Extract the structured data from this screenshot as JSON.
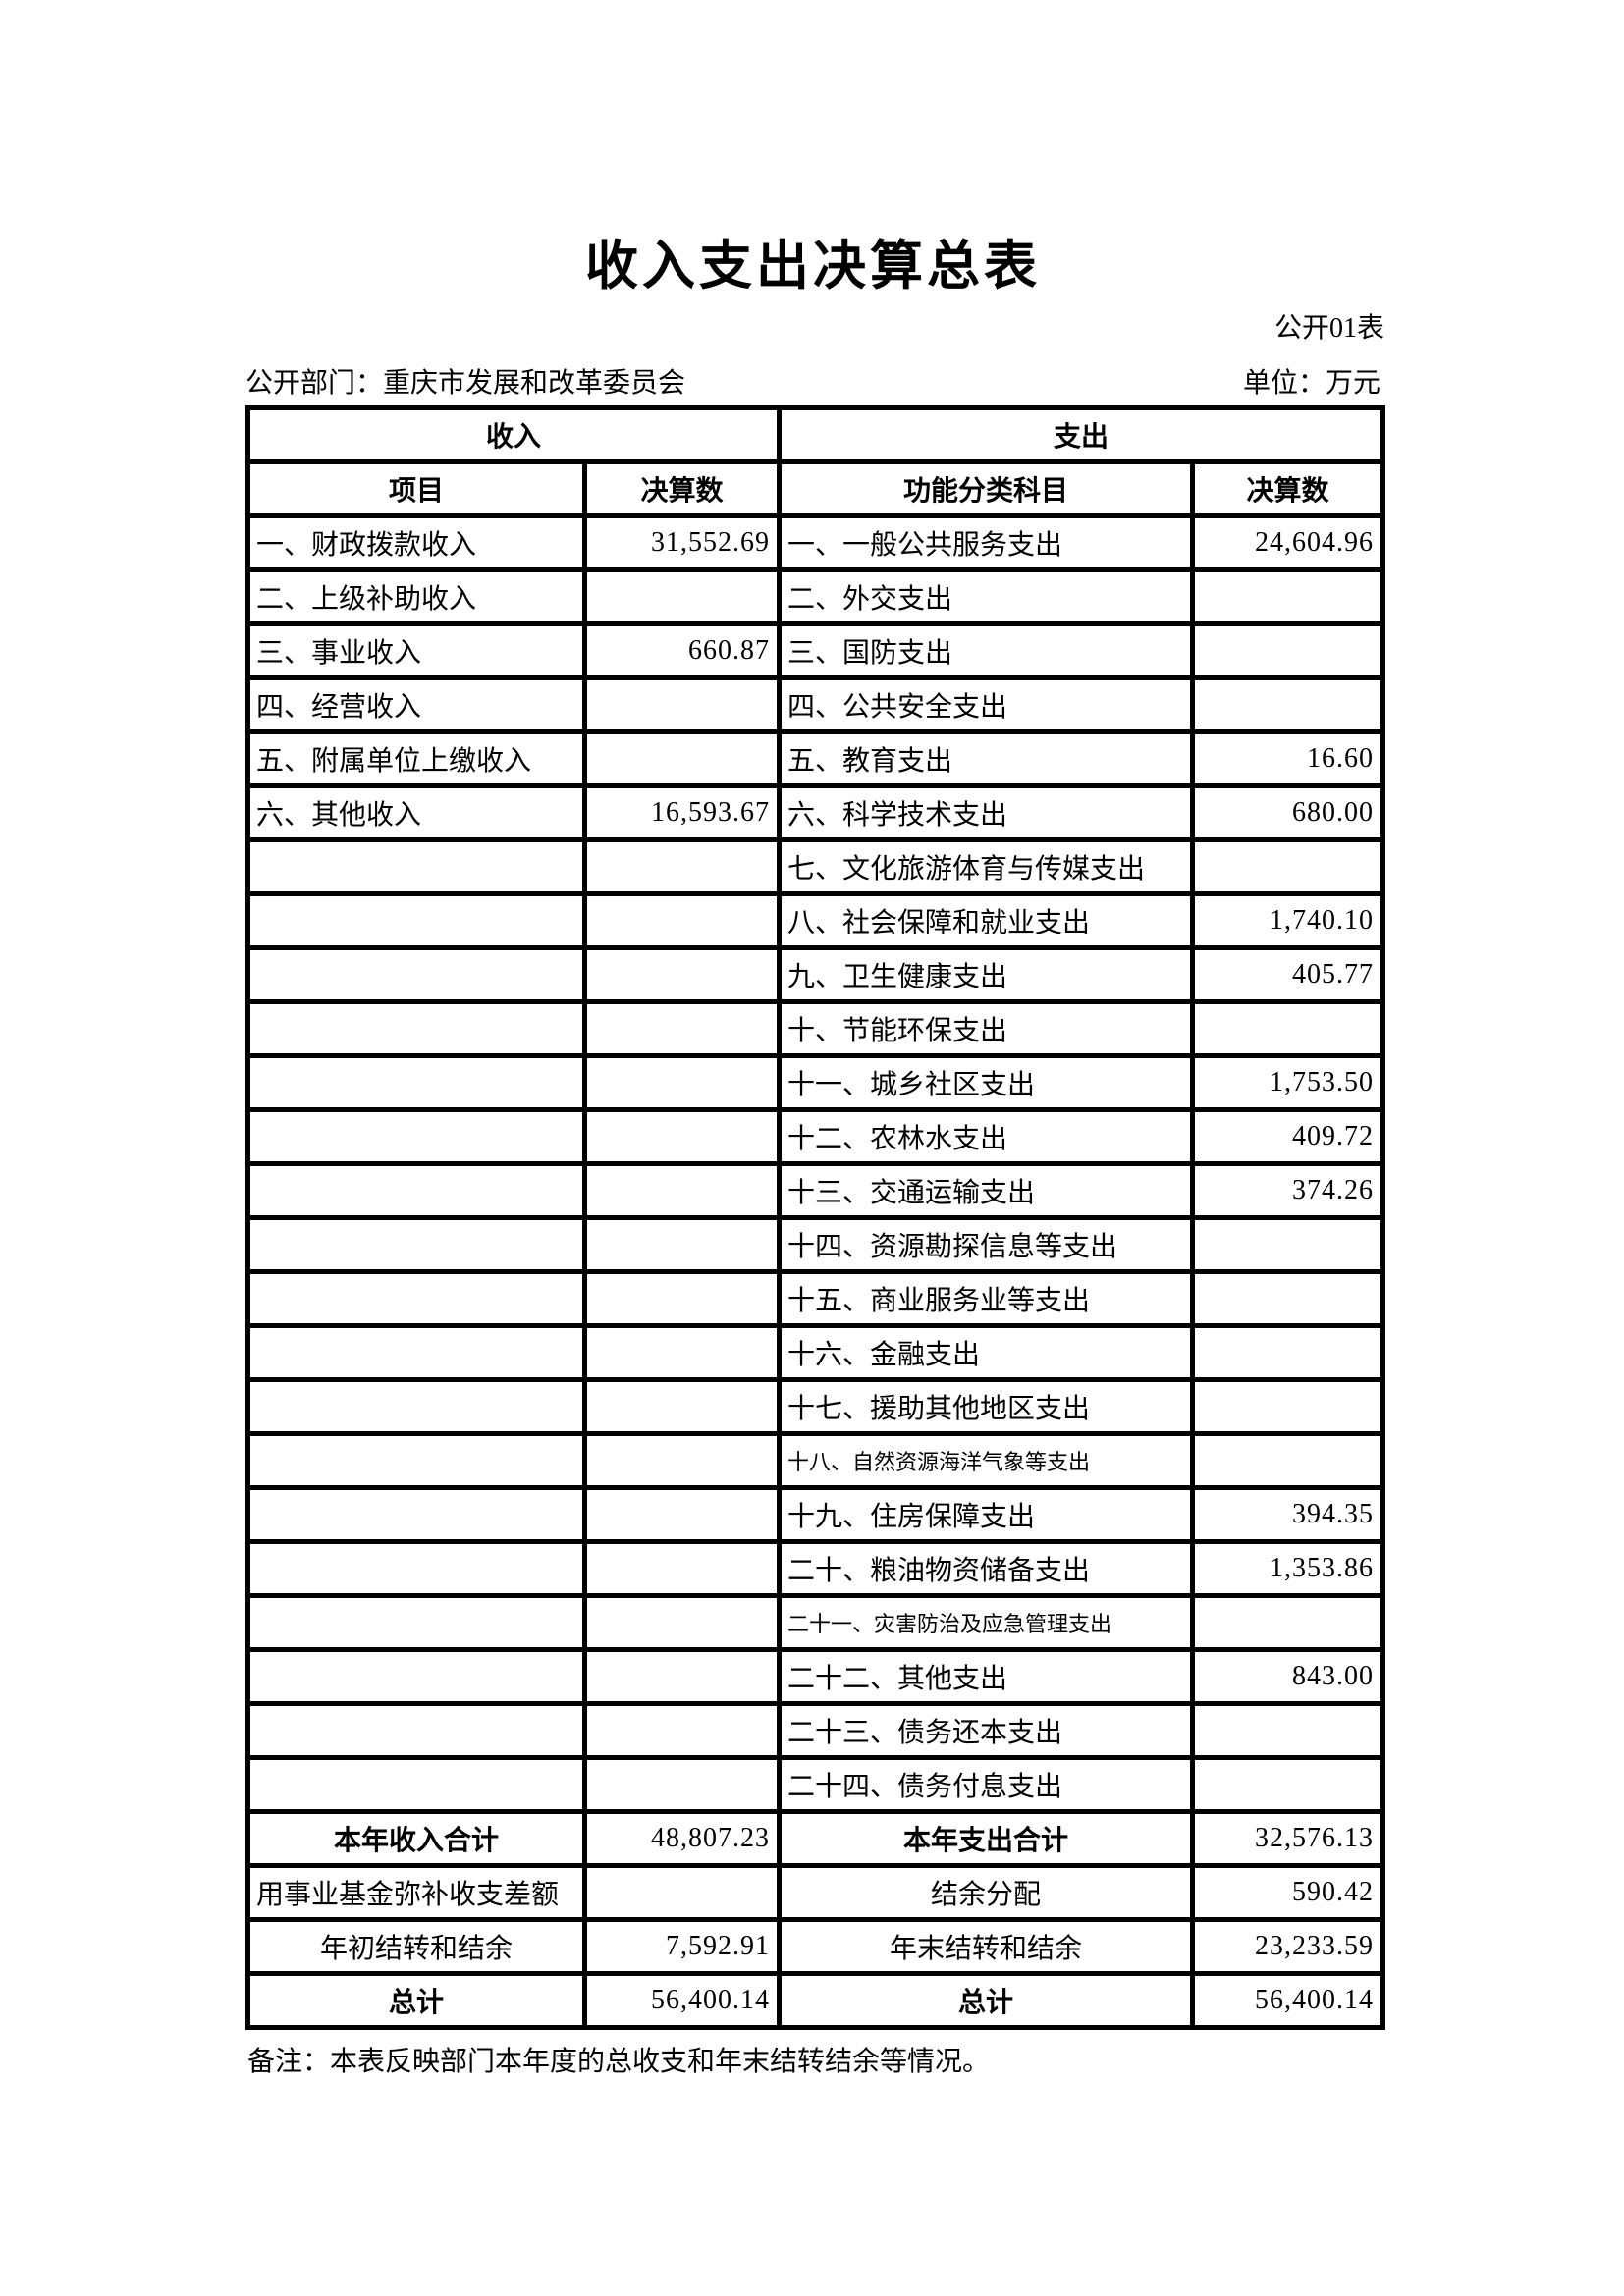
{
  "page": {
    "title": "收入支出决算总表",
    "form_code": "公开01表",
    "department_label": "公开部门：重庆市发展和改革委员会",
    "unit_label": "单位：万元",
    "note": "备注：本表反映部门本年度的总收支和年末结转结余等情况。"
  },
  "colors": {
    "text": "#000000",
    "background": "#ffffff",
    "border": "#000000"
  },
  "table": {
    "group_headers": {
      "income": "收入",
      "expenditure": "支出"
    },
    "column_headers": {
      "income_item": "项目",
      "income_amount": "决算数",
      "expenditure_item": "功能分类科目",
      "expenditure_amount": "决算数"
    },
    "rows": [
      {
        "income_item": "一、财政拨款收入",
        "income_amount": "31,552.69",
        "exp_item": "一、一般公共服务支出",
        "exp_amount": "24,604.96"
      },
      {
        "income_item": "二、上级补助收入",
        "income_amount": "",
        "exp_item": "二、外交支出",
        "exp_amount": ""
      },
      {
        "income_item": "三、事业收入",
        "income_amount": "660.87",
        "exp_item": "三、国防支出",
        "exp_amount": ""
      },
      {
        "income_item": "四、经营收入",
        "income_amount": "",
        "exp_item": "四、公共安全支出",
        "exp_amount": ""
      },
      {
        "income_item": "五、附属单位上缴收入",
        "income_amount": "",
        "exp_item": "五、教育支出",
        "exp_amount": "16.60"
      },
      {
        "income_item": "六、其他收入",
        "income_amount": "16,593.67",
        "exp_item": "六、科学技术支出",
        "exp_amount": "680.00"
      },
      {
        "income_item": "",
        "income_amount": "",
        "exp_item": "七、文化旅游体育与传媒支出",
        "exp_amount": ""
      },
      {
        "income_item": "",
        "income_amount": "",
        "exp_item": "八、社会保障和就业支出",
        "exp_amount": "1,740.10"
      },
      {
        "income_item": "",
        "income_amount": "",
        "exp_item": "九、卫生健康支出",
        "exp_amount": "405.77"
      },
      {
        "income_item": "",
        "income_amount": "",
        "exp_item": "十、节能环保支出",
        "exp_amount": ""
      },
      {
        "income_item": "",
        "income_amount": "",
        "exp_item": "十一、城乡社区支出",
        "exp_amount": "1,753.50"
      },
      {
        "income_item": "",
        "income_amount": "",
        "exp_item": "十二、农林水支出",
        "exp_amount": "409.72"
      },
      {
        "income_item": "",
        "income_amount": "",
        "exp_item": "十三、交通运输支出",
        "exp_amount": "374.26"
      },
      {
        "income_item": "",
        "income_amount": "",
        "exp_item": "十四、资源勘探信息等支出",
        "exp_amount": ""
      },
      {
        "income_item": "",
        "income_amount": "",
        "exp_item": "十五、商业服务业等支出",
        "exp_amount": ""
      },
      {
        "income_item": "",
        "income_amount": "",
        "exp_item": "十六、金融支出",
        "exp_amount": ""
      },
      {
        "income_item": "",
        "income_amount": "",
        "exp_item": "十七、援助其他地区支出",
        "exp_amount": ""
      },
      {
        "income_item": "",
        "income_amount": "",
        "exp_item": "十八、自然资源海洋气象等支出",
        "exp_amount": "",
        "exp_item_small": true
      },
      {
        "income_item": "",
        "income_amount": "",
        "exp_item": "十九、住房保障支出",
        "exp_amount": "394.35"
      },
      {
        "income_item": "",
        "income_amount": "",
        "exp_item": "二十、粮油物资储备支出",
        "exp_amount": "1,353.86"
      },
      {
        "income_item": "",
        "income_amount": "",
        "exp_item": "二十一、灾害防治及应急管理支出",
        "exp_amount": "",
        "exp_item_small": true
      },
      {
        "income_item": "",
        "income_amount": "",
        "exp_item": "二十二、其他支出",
        "exp_amount": "843.00"
      },
      {
        "income_item": "",
        "income_amount": "",
        "exp_item": "二十三、债务还本支出",
        "exp_amount": ""
      },
      {
        "income_item": "",
        "income_amount": "",
        "exp_item": "二十四、债务付息支出",
        "exp_amount": ""
      }
    ],
    "footer_rows": [
      {
        "income_item": "本年收入合计",
        "income_amount": "48,807.23",
        "exp_item": "本年支出合计",
        "exp_amount": "32,576.13",
        "bold": true,
        "income_item_align": "center",
        "exp_item_align": "center"
      },
      {
        "income_item": "用事业基金弥补收支差额",
        "income_amount": "",
        "exp_item": "结余分配",
        "exp_amount": "590.42",
        "income_item_align": "left",
        "exp_item_align": "center"
      },
      {
        "income_item": "年初结转和结余",
        "income_amount": "7,592.91",
        "exp_item": "年末结转和结余",
        "exp_amount": "23,233.59",
        "income_item_align": "center",
        "exp_item_align": "center"
      },
      {
        "income_item": "总计",
        "income_amount": "56,400.14",
        "exp_item": "总计",
        "exp_amount": "56,400.14",
        "bold": true,
        "income_item_align": "center",
        "exp_item_align": "center"
      }
    ]
  }
}
